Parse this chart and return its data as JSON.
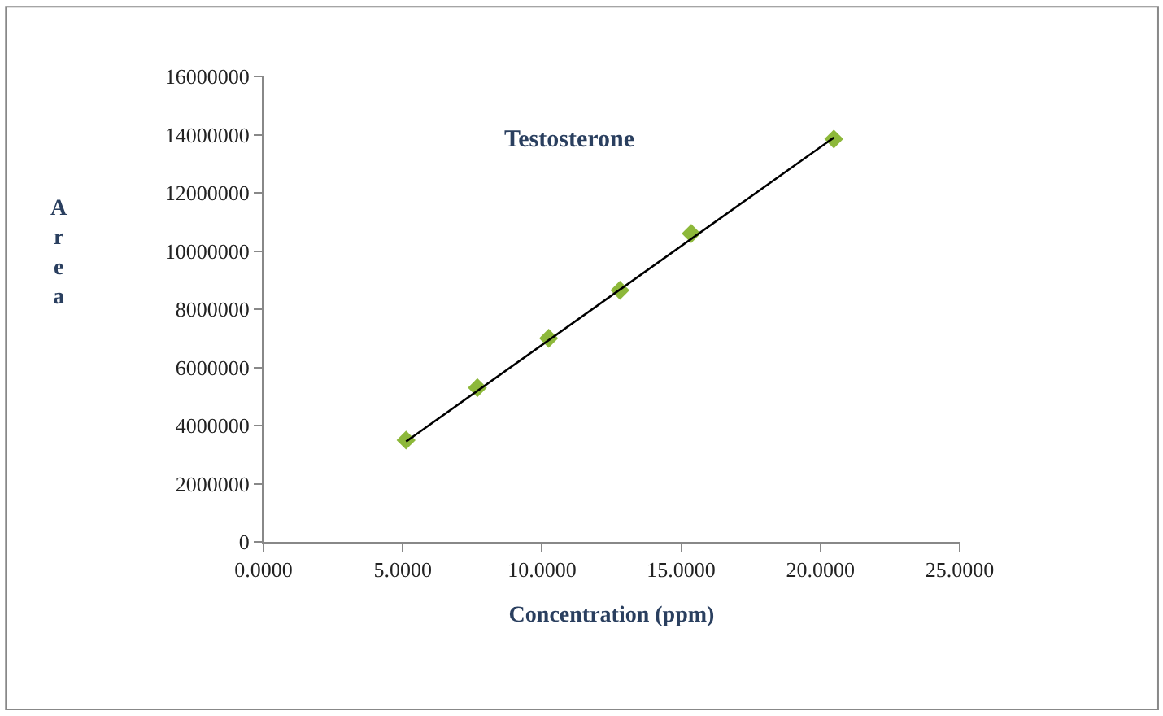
{
  "chart_data": {
    "type": "scatter",
    "title": "Testosterone",
    "xlabel": "Concentration (ppm)",
    "ylabel": "Area",
    "x": [
      5.12,
      7.68,
      10.24,
      12.8,
      15.36,
      20.48
    ],
    "series": [
      {
        "color": "#8db83a",
        "values": [
          3500000,
          5300000,
          7000000,
          8650000,
          10600000,
          13850000
        ],
        "marker": "diamond"
      },
      {
        "type": "line",
        "color": "#000000",
        "x": [
          5.12,
          20.48
        ],
        "values": [
          3450000,
          13900000
        ],
        "marker": "none",
        "line_style": "solid"
      }
    ],
    "xlim": [
      0,
      25
    ],
    "xticks": [
      {
        "value": 0,
        "label": "0.0000"
      },
      {
        "value": 5,
        "label": "5.0000"
      },
      {
        "value": 10,
        "label": "10.0000"
      },
      {
        "value": 15,
        "label": "15.0000"
      },
      {
        "value": 20,
        "label": "20.0000"
      },
      {
        "value": 25,
        "label": "25.0000"
      }
    ],
    "ylim": [
      0,
      16000000
    ],
    "yticks": [
      0,
      2000000,
      4000000,
      6000000,
      8000000,
      10000000,
      12000000,
      14000000,
      16000000
    ]
  }
}
